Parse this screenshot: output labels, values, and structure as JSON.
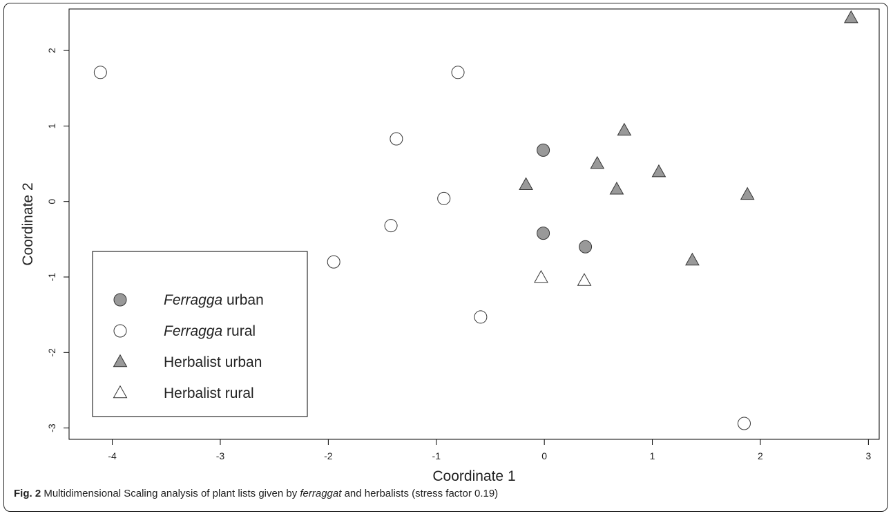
{
  "chart_data": {
    "type": "scatter",
    "xlabel": "Coordinate 1",
    "ylabel": "Coordinate 2",
    "xlim": [
      -4.4,
      3.1
    ],
    "ylim": [
      -3.15,
      2.55
    ],
    "xticks": [
      -4,
      -3,
      -2,
      -1,
      0,
      1,
      2,
      3
    ],
    "yticks": [
      -3,
      -2,
      -1,
      0,
      1,
      2
    ],
    "grid": false,
    "legend_position": "bottom-left",
    "series": [
      {
        "name": "Ferragga urban",
        "name_italic": "Ferragga",
        "name_rest": " urban",
        "marker": "circle",
        "fill": "#999999",
        "points": [
          [
            -0.01,
            0.68
          ],
          [
            -0.01,
            -0.42
          ],
          [
            0.38,
            -0.6
          ]
        ]
      },
      {
        "name": "Ferragga rural",
        "name_italic": "Ferragga",
        "name_rest": " rural",
        "marker": "circle",
        "fill": "#ffffff",
        "points": [
          [
            -4.11,
            1.71
          ],
          [
            -0.8,
            1.71
          ],
          [
            -1.37,
            0.83
          ],
          [
            -0.93,
            0.04
          ],
          [
            -1.42,
            -0.32
          ],
          [
            -1.95,
            -0.8
          ],
          [
            -0.59,
            -1.53
          ],
          [
            1.85,
            -2.94
          ]
        ]
      },
      {
        "name": "Herbalist urban",
        "name_italic": "",
        "name_rest": "Herbalist urban",
        "marker": "triangle",
        "fill": "#999999",
        "points": [
          [
            2.84,
            2.43
          ],
          [
            0.74,
            0.94
          ],
          [
            0.49,
            0.5
          ],
          [
            -0.17,
            0.22
          ],
          [
            1.06,
            0.39
          ],
          [
            0.67,
            0.16
          ],
          [
            1.88,
            0.09
          ],
          [
            1.37,
            -0.78
          ]
        ]
      },
      {
        "name": "Herbalist rural",
        "name_italic": "",
        "name_rest": "Herbalist rural",
        "marker": "triangle",
        "fill": "#ffffff",
        "points": [
          [
            -0.03,
            -1.01
          ],
          [
            0.37,
            -1.05
          ]
        ]
      }
    ]
  },
  "caption": {
    "label": "Fig. 2",
    "text_before": " Multidimensional Scaling analysis of plant lists given by ",
    "italic": "ferraggat",
    "text_after": " and herbalists (stress factor 0.19)"
  }
}
